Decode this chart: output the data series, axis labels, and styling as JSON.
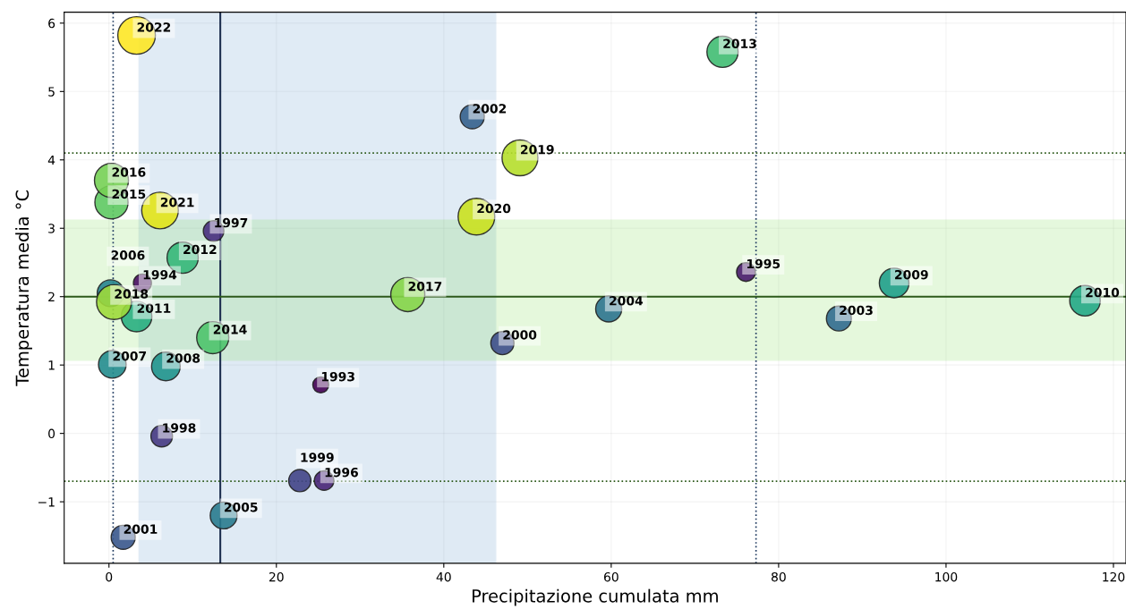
{
  "chart_data": {
    "type": "bubble",
    "xlabel": "Precipitazione cumulata mm",
    "ylabel": "Temperatura media °C",
    "x": [
      25.3,
      4.0,
      76.1,
      25.7,
      12.5,
      6.3,
      22.8,
      47.0,
      1.7,
      43.4,
      87.2,
      59.7,
      13.7,
      0.2,
      0.4,
      6.8,
      93.8,
      116.6,
      3.3,
      8.8,
      73.3,
      12.4,
      0.3,
      0.3,
      35.7,
      0.6,
      49.1,
      43.9,
      6.1,
      3.3
    ],
    "values": [
      0.71,
      2.2,
      2.36,
      -0.69,
      2.96,
      -0.04,
      -0.69,
      1.32,
      -1.52,
      4.63,
      1.68,
      1.82,
      -1.2,
      2.05,
      1.01,
      0.98,
      2.2,
      1.94,
      1.71,
      2.57,
      5.58,
      1.4,
      3.38,
      3.7,
      2.03,
      1.92,
      4.03,
      3.17,
      3.26,
      5.82
    ],
    "sizes": [
      0.18,
      0.23,
      0.25,
      0.27,
      0.3,
      0.33,
      0.35,
      0.38,
      0.41,
      0.41,
      0.44,
      0.48,
      0.51,
      0.51,
      0.54,
      0.58,
      0.62,
      0.66,
      0.66,
      0.69,
      0.69,
      0.73,
      0.78,
      0.82,
      0.82,
      0.86,
      0.91,
      0.95,
      0.95,
      1
    ],
    "colors": [
      "#440154",
      "#470d60",
      "#481a6c",
      "#482576",
      "#472f7d",
      "#453882",
      "#414487",
      "#3d4e8a",
      "#39568c",
      "#34618d",
      "#306a8e",
      "#2c738e",
      "#297b8e",
      "#25848e",
      "#228c8d",
      "#1f948c",
      "#1f9e89",
      "#22a785",
      "#28ae80",
      "#35b779",
      "#40bd72",
      "#4ec36b",
      "#5ec962",
      "#75d054",
      "#86d549",
      "#9dd93b",
      "#b5de2b",
      "#cae11f",
      "#e2e418",
      "#fde725"
    ],
    "annotations": [
      {
        "text": "1993",
        "x": 25.3,
        "y": 0.71
      },
      {
        "text": "1994",
        "x": 4.0,
        "y": 2.2
      },
      {
        "text": "1995",
        "x": 76.1,
        "y": 2.36
      },
      {
        "text": "1996",
        "x": 25.7,
        "y": -0.69
      },
      {
        "text": "1997",
        "x": 12.5,
        "y": 2.96
      },
      {
        "text": "1998",
        "x": 6.3,
        "y": -0.04
      },
      {
        "text": "1999",
        "x": 22.8,
        "y": -0.69
      },
      {
        "text": "2000",
        "x": 47.0,
        "y": 1.32
      },
      {
        "text": "2001",
        "x": 1.7,
        "y": -1.52
      },
      {
        "text": "2002",
        "x": 43.4,
        "y": 4.63
      },
      {
        "text": "2003",
        "x": 87.2,
        "y": 1.68
      },
      {
        "text": "2004",
        "x": 59.7,
        "y": 1.82
      },
      {
        "text": "2005",
        "x": 13.7,
        "y": -1.2
      },
      {
        "text": "2006",
        "x": 0.2,
        "y": 2.05
      },
      {
        "text": "2007",
        "x": 0.4,
        "y": 1.01
      },
      {
        "text": "2008",
        "x": 6.8,
        "y": 0.98
      },
      {
        "text": "2009",
        "x": 93.8,
        "y": 2.2
      },
      {
        "text": "2010",
        "x": 116.6,
        "y": 1.94
      },
      {
        "text": "2011",
        "x": 3.3,
        "y": 1.71
      },
      {
        "text": "2012",
        "x": 8.8,
        "y": 2.57
      },
      {
        "text": "2013",
        "x": 73.3,
        "y": 5.58
      },
      {
        "text": "2014",
        "x": 12.4,
        "y": 1.4
      },
      {
        "text": "2015",
        "x": 0.3,
        "y": 3.38
      },
      {
        "text": "2016",
        "x": 0.3,
        "y": 3.7
      },
      {
        "text": "2017",
        "x": 35.7,
        "y": 2.03
      },
      {
        "text": "2018",
        "x": 0.6,
        "y": 1.92
      },
      {
        "text": "2019",
        "x": 49.1,
        "y": 4.03
      },
      {
        "text": "2020",
        "x": 43.9,
        "y": 3.17
      },
      {
        "text": "2021",
        "x": 6.1,
        "y": 3.26
      },
      {
        "text": "2022",
        "x": 3.3,
        "y": 5.82
      }
    ],
    "ref_lines": [
      {
        "axis": "x",
        "value": 0.5,
        "color": "#1f3a60",
        "line_style": "dotted"
      },
      {
        "axis": "x",
        "value": 77.3,
        "color": "#1f3a60",
        "line_style": "dotted"
      },
      {
        "axis": "x",
        "value": 13.3,
        "color": "#1f3050",
        "line_style": "solid"
      },
      {
        "axis": "y",
        "value": 4.1,
        "color": "#2d5a1b",
        "line_style": "dotted"
      },
      {
        "axis": "y",
        "value": -0.7,
        "color": "#2d5a1b",
        "line_style": "dotted"
      },
      {
        "axis": "y",
        "value": 2.0,
        "color": "#2d5a1b",
        "line_style": "solid"
      }
    ],
    "bands": [
      {
        "axis": "x",
        "from": 3.6,
        "to": 46.2,
        "color": "#6699cc"
      },
      {
        "axis": "y",
        "from": 1.07,
        "to": 3.12,
        "color": "#7fdd55"
      }
    ],
    "xlim": [
      -5.35,
      121.5
    ],
    "ylim": [
      -1.9,
      6.16
    ],
    "xticks": [
      0,
      20,
      40,
      60,
      80,
      100,
      120
    ],
    "yticks": [
      {
        "value": -1,
        "label": "−1"
      },
      0,
      1,
      2,
      3,
      4,
      5,
      6
    ],
    "grid": true
  }
}
